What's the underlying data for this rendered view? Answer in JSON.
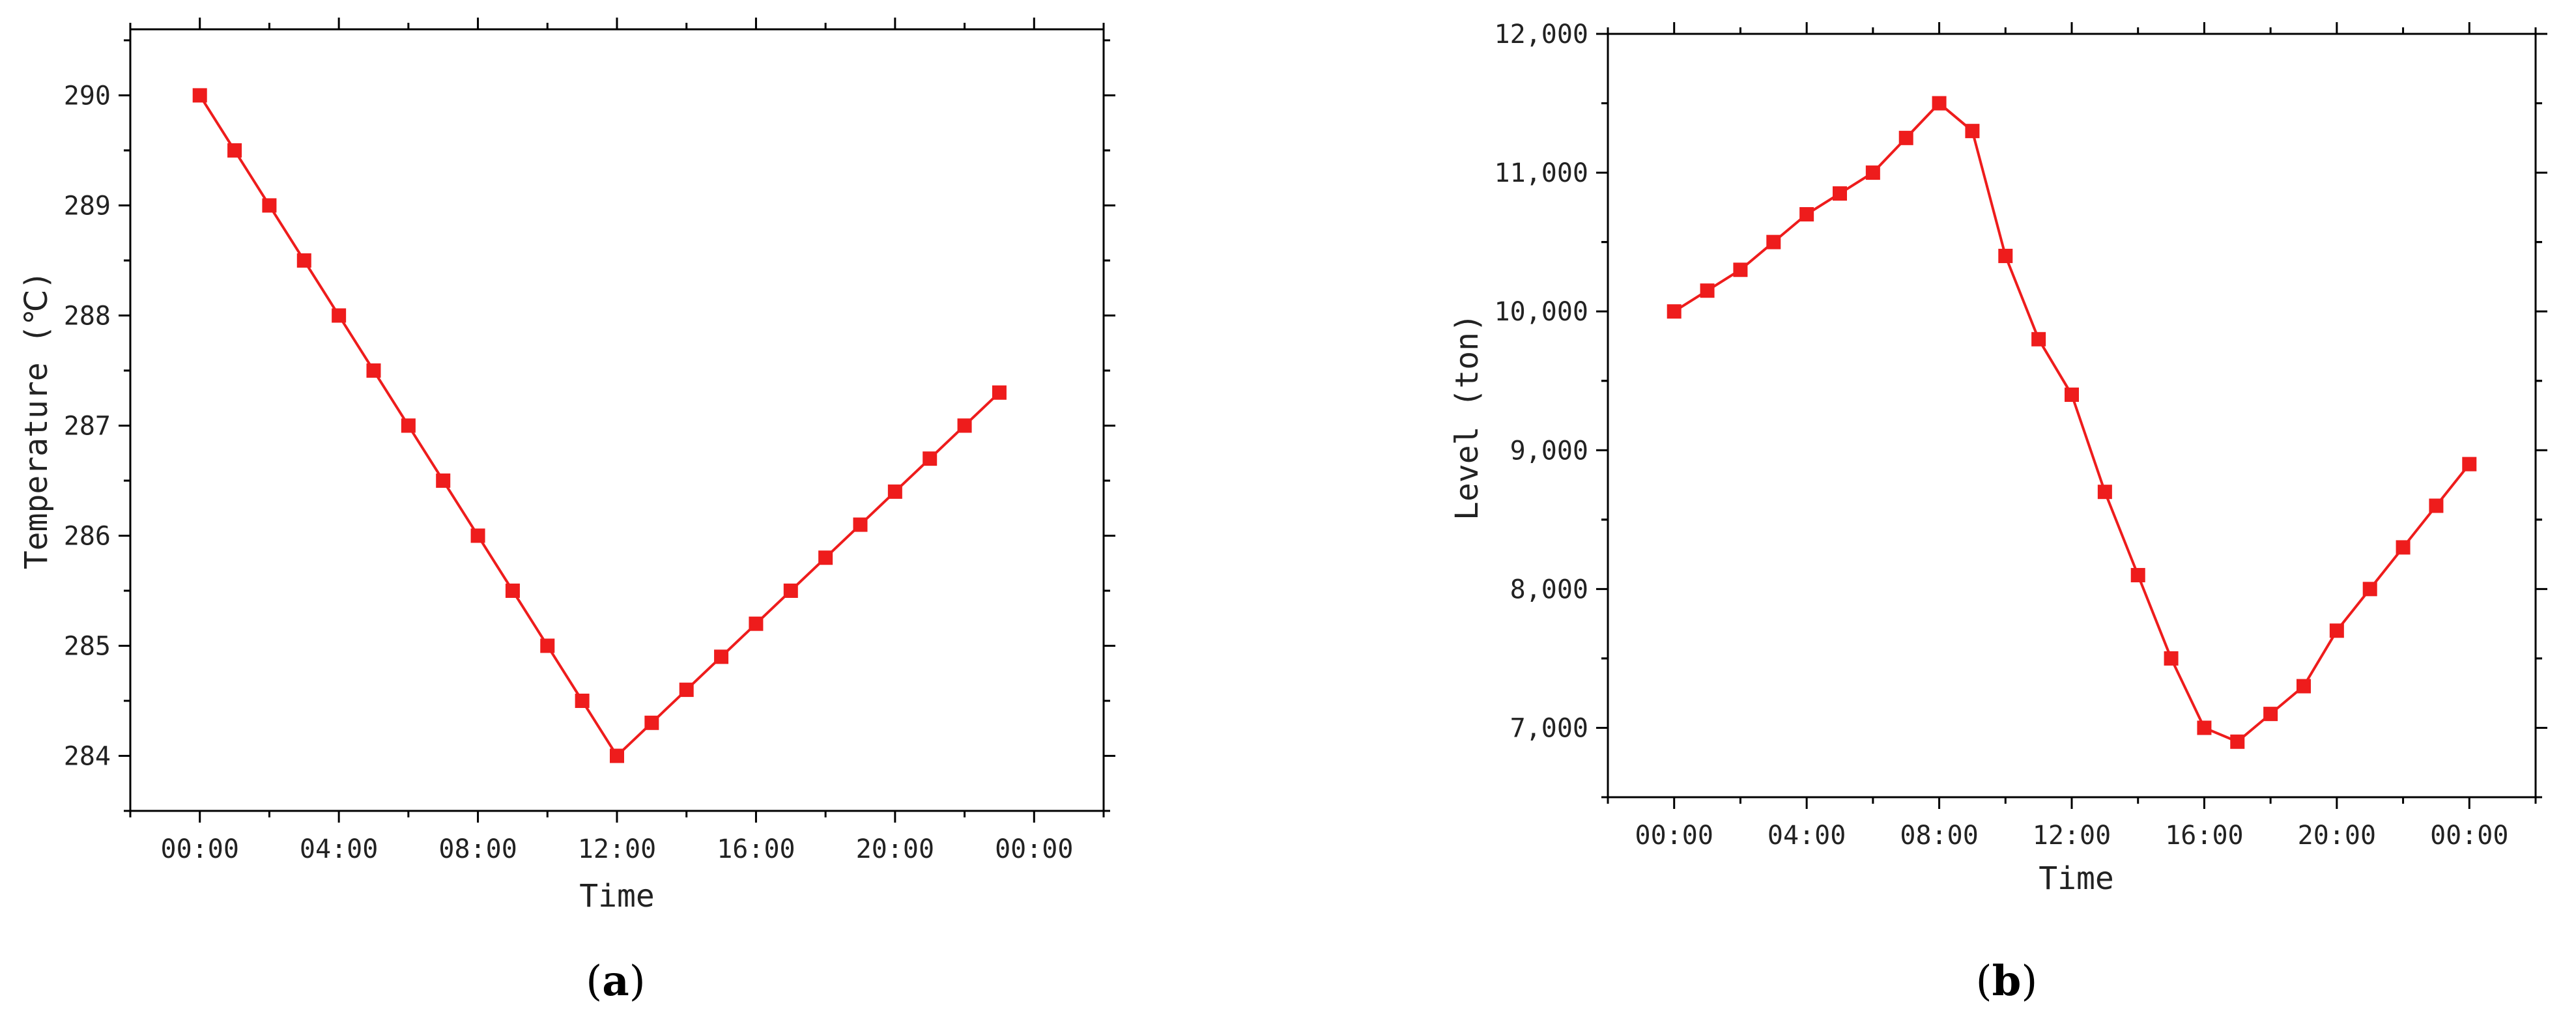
{
  "colors": {
    "series": "#ee1c1c",
    "axis": "#000000",
    "text": "#222222"
  },
  "panels": [
    {
      "label_open": "(",
      "label_letter": "a",
      "label_close": ")"
    },
    {
      "label_open": "(",
      "label_letter": "b",
      "label_close": ")"
    }
  ],
  "chart_data": [
    {
      "type": "line",
      "xlabel": "Time",
      "ylabel": "Temperature (℃)",
      "xlim": [
        -2,
        26
      ],
      "ylim": [
        283.5,
        290.6
      ],
      "x_ticks": [
        0,
        4,
        8,
        12,
        16,
        20,
        24
      ],
      "x_tick_labels": [
        "00:00",
        "04:00",
        "08:00",
        "12:00",
        "16:00",
        "20:00",
        "00:00"
      ],
      "y_ticks": [
        284,
        285,
        286,
        287,
        288,
        289,
        290
      ],
      "y_tick_labels": [
        "284",
        "285",
        "286",
        "287",
        "288",
        "289",
        "290"
      ],
      "grid": false,
      "series": [
        {
          "marker": "square",
          "x": [
            0,
            1,
            2,
            3,
            4,
            5,
            6,
            7,
            8,
            9,
            10,
            11,
            12,
            13,
            14,
            15,
            16,
            17,
            18,
            19,
            20,
            21,
            22,
            23
          ],
          "values": [
            290.0,
            289.5,
            289.0,
            288.5,
            288.0,
            287.5,
            287.0,
            286.5,
            286.0,
            285.5,
            285.0,
            284.5,
            284.0,
            284.3,
            284.6,
            284.9,
            285.2,
            285.5,
            285.8,
            286.1,
            286.4,
            286.7,
            287.0,
            287.3
          ]
        }
      ]
    },
    {
      "type": "line",
      "xlabel": "Time",
      "ylabel": "Level (ton)",
      "xlim": [
        -2,
        26
      ],
      "ylim": [
        6500,
        12000
      ],
      "x_ticks": [
        0,
        4,
        8,
        12,
        16,
        20,
        24
      ],
      "x_tick_labels": [
        "00:00",
        "04:00",
        "08:00",
        "12:00",
        "16:00",
        "20:00",
        "00:00"
      ],
      "y_ticks": [
        7000,
        8000,
        9000,
        10000,
        11000,
        12000
      ],
      "y_tick_labels": [
        "7,000",
        "8,000",
        "9,000",
        "10,000",
        "11,000",
        "12,000"
      ],
      "grid": false,
      "series": [
        {
          "marker": "square",
          "x": [
            0,
            1,
            2,
            3,
            4,
            5,
            6,
            7,
            8,
            9,
            10,
            11,
            12,
            13,
            14,
            15,
            16,
            17,
            18,
            19,
            20,
            21,
            22,
            23,
            24
          ],
          "values": [
            10000,
            10150,
            10300,
            10500,
            10700,
            10850,
            11000,
            11250,
            11500,
            11300,
            10400,
            9800,
            9400,
            8700,
            8100,
            7500,
            7000,
            6900,
            7100,
            7300,
            7700,
            8000,
            8300,
            8600,
            8900
          ]
        }
      ]
    }
  ]
}
